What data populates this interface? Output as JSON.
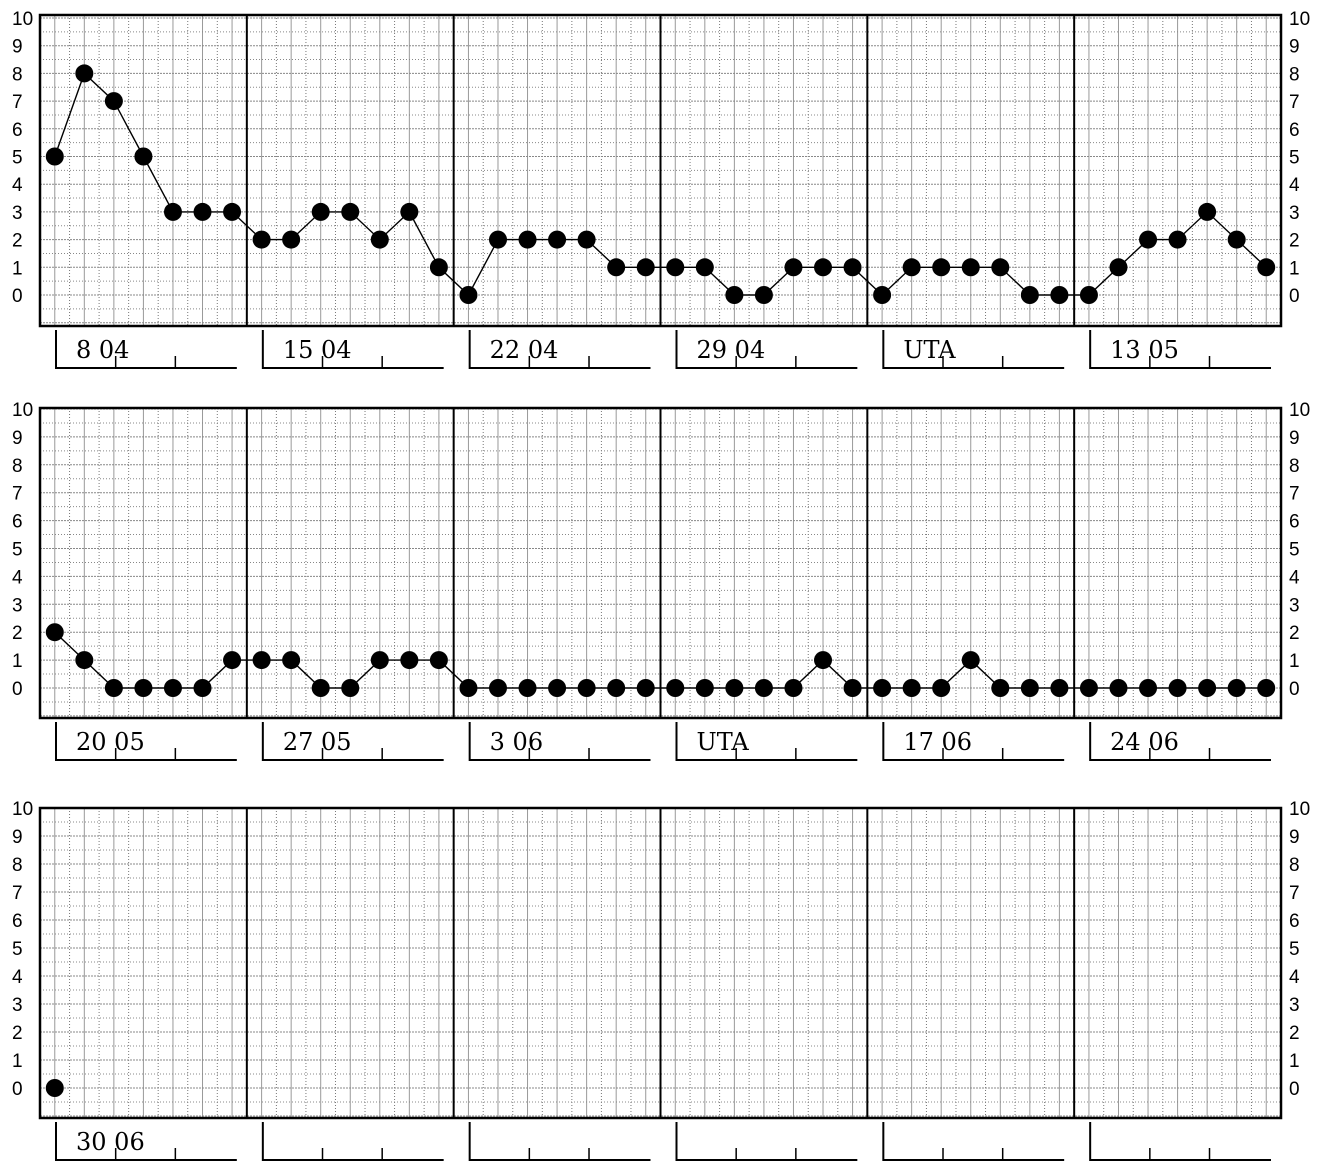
{
  "chart_data": {
    "type": "line",
    "ylim": [
      0,
      10
    ],
    "y_ticks": [
      "0",
      "1",
      "2",
      "3",
      "4",
      "5",
      "6",
      "7",
      "8",
      "9",
      "10"
    ],
    "grid": true,
    "panels": [
      {
        "weeks": [
          "8 04",
          "15 04",
          "22 04",
          "29 04",
          "UTA",
          "13 05"
        ],
        "values": [
          5,
          8,
          7,
          5,
          3,
          3,
          3,
          2,
          2,
          3,
          3,
          2,
          3,
          1,
          0,
          2,
          2,
          2,
          2,
          1,
          1,
          1,
          1,
          0,
          0,
          1,
          1,
          1,
          0,
          1,
          1,
          1,
          1,
          0,
          0,
          0,
          1,
          2,
          2,
          3,
          2,
          1
        ]
      },
      {
        "weeks": [
          "20 05",
          "27 05",
          "3 06",
          "UTA",
          "17 06",
          "24 06"
        ],
        "values": [
          2,
          1,
          0,
          0,
          0,
          0,
          1,
          1,
          1,
          0,
          0,
          1,
          1,
          1,
          0,
          0,
          0,
          0,
          0,
          0,
          0,
          0,
          0,
          0,
          0,
          0,
          1,
          0,
          0,
          0,
          0,
          1,
          0,
          0,
          0,
          0,
          0,
          0,
          0,
          0,
          0,
          0
        ]
      },
      {
        "weeks": [
          "30 06",
          "",
          "",
          "",
          "",
          ""
        ],
        "values": [
          0
        ]
      }
    ]
  }
}
